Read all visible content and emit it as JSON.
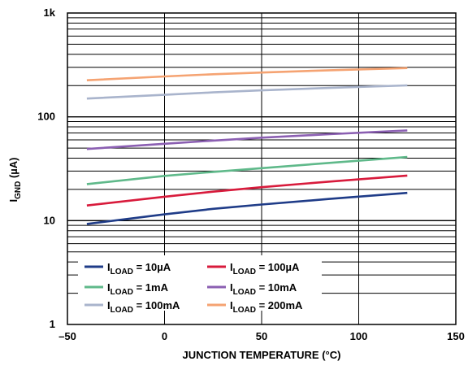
{
  "chart_data": {
    "type": "line",
    "title": "",
    "xlabel": "JUNCTION TEMPERATURE (°C)",
    "ylabel": {
      "main": "I",
      "sub": "GND",
      "unit": " (µA)"
    },
    "xlim": [
      -50,
      150
    ],
    "ylim": [
      1,
      1000
    ],
    "yscale": "log",
    "grid": true,
    "legend_position": "bottom-left",
    "x_ticks": [
      {
        "value": -50,
        "label": "–50"
      },
      {
        "value": 0,
        "label": "0"
      },
      {
        "value": 50,
        "label": "50"
      },
      {
        "value": 100,
        "label": "100"
      },
      {
        "value": 150,
        "label": "150"
      }
    ],
    "y_ticks": [
      {
        "value": 1,
        "label": "1"
      },
      {
        "value": 10,
        "label": "10"
      },
      {
        "value": 100,
        "label": "100"
      },
      {
        "value": 1000,
        "label": "1k"
      }
    ],
    "series": [
      {
        "name": "10µA",
        "label_main": "I",
        "label_sub": "LOAD",
        "label_value": " = 10µA",
        "color": "#1f3c88",
        "x": [
          -40,
          0,
          25,
          50,
          85,
          125
        ],
        "values": [
          9.3,
          11.5,
          13.0,
          14.3,
          16.2,
          18.5
        ]
      },
      {
        "name": "100µA",
        "label_main": "I",
        "label_sub": "LOAD",
        "label_value": " = 100µA",
        "color": "#d81b3c",
        "x": [
          -40,
          0,
          25,
          50,
          85,
          125
        ],
        "values": [
          14.0,
          17.0,
          19.0,
          21.0,
          23.8,
          27.2
        ]
      },
      {
        "name": "1mA",
        "label_main": "I",
        "label_sub": "LOAD",
        "label_value": " = 1mA",
        "color": "#5fb98a",
        "x": [
          -40,
          0,
          25,
          50,
          85,
          125
        ],
        "values": [
          22.5,
          27.0,
          29.5,
          32.0,
          36.0,
          41.0
        ]
      },
      {
        "name": "10mA",
        "label_main": "I",
        "label_sub": "LOAD",
        "label_value": " = 10mA",
        "color": "#8b5fb2",
        "x": [
          -40,
          0,
          25,
          50,
          85,
          125
        ],
        "values": [
          49.0,
          55.0,
          59.0,
          63.0,
          68.0,
          74.0
        ]
      },
      {
        "name": "100mA",
        "label_main": "I",
        "label_sub": "LOAD",
        "label_value": " = 100mA",
        "color": "#a9b4cc",
        "x": [
          -40,
          0,
          25,
          50,
          85,
          125
        ],
        "values": [
          150,
          163,
          172,
          180,
          190,
          201
        ]
      },
      {
        "name": "200mA",
        "label_main": "I",
        "label_sub": "LOAD",
        "label_value": " = 200mA",
        "color": "#f5a372",
        "x": [
          -40,
          0,
          25,
          50,
          85,
          125
        ],
        "values": [
          225,
          245,
          257,
          267,
          281,
          295
        ]
      }
    ]
  }
}
